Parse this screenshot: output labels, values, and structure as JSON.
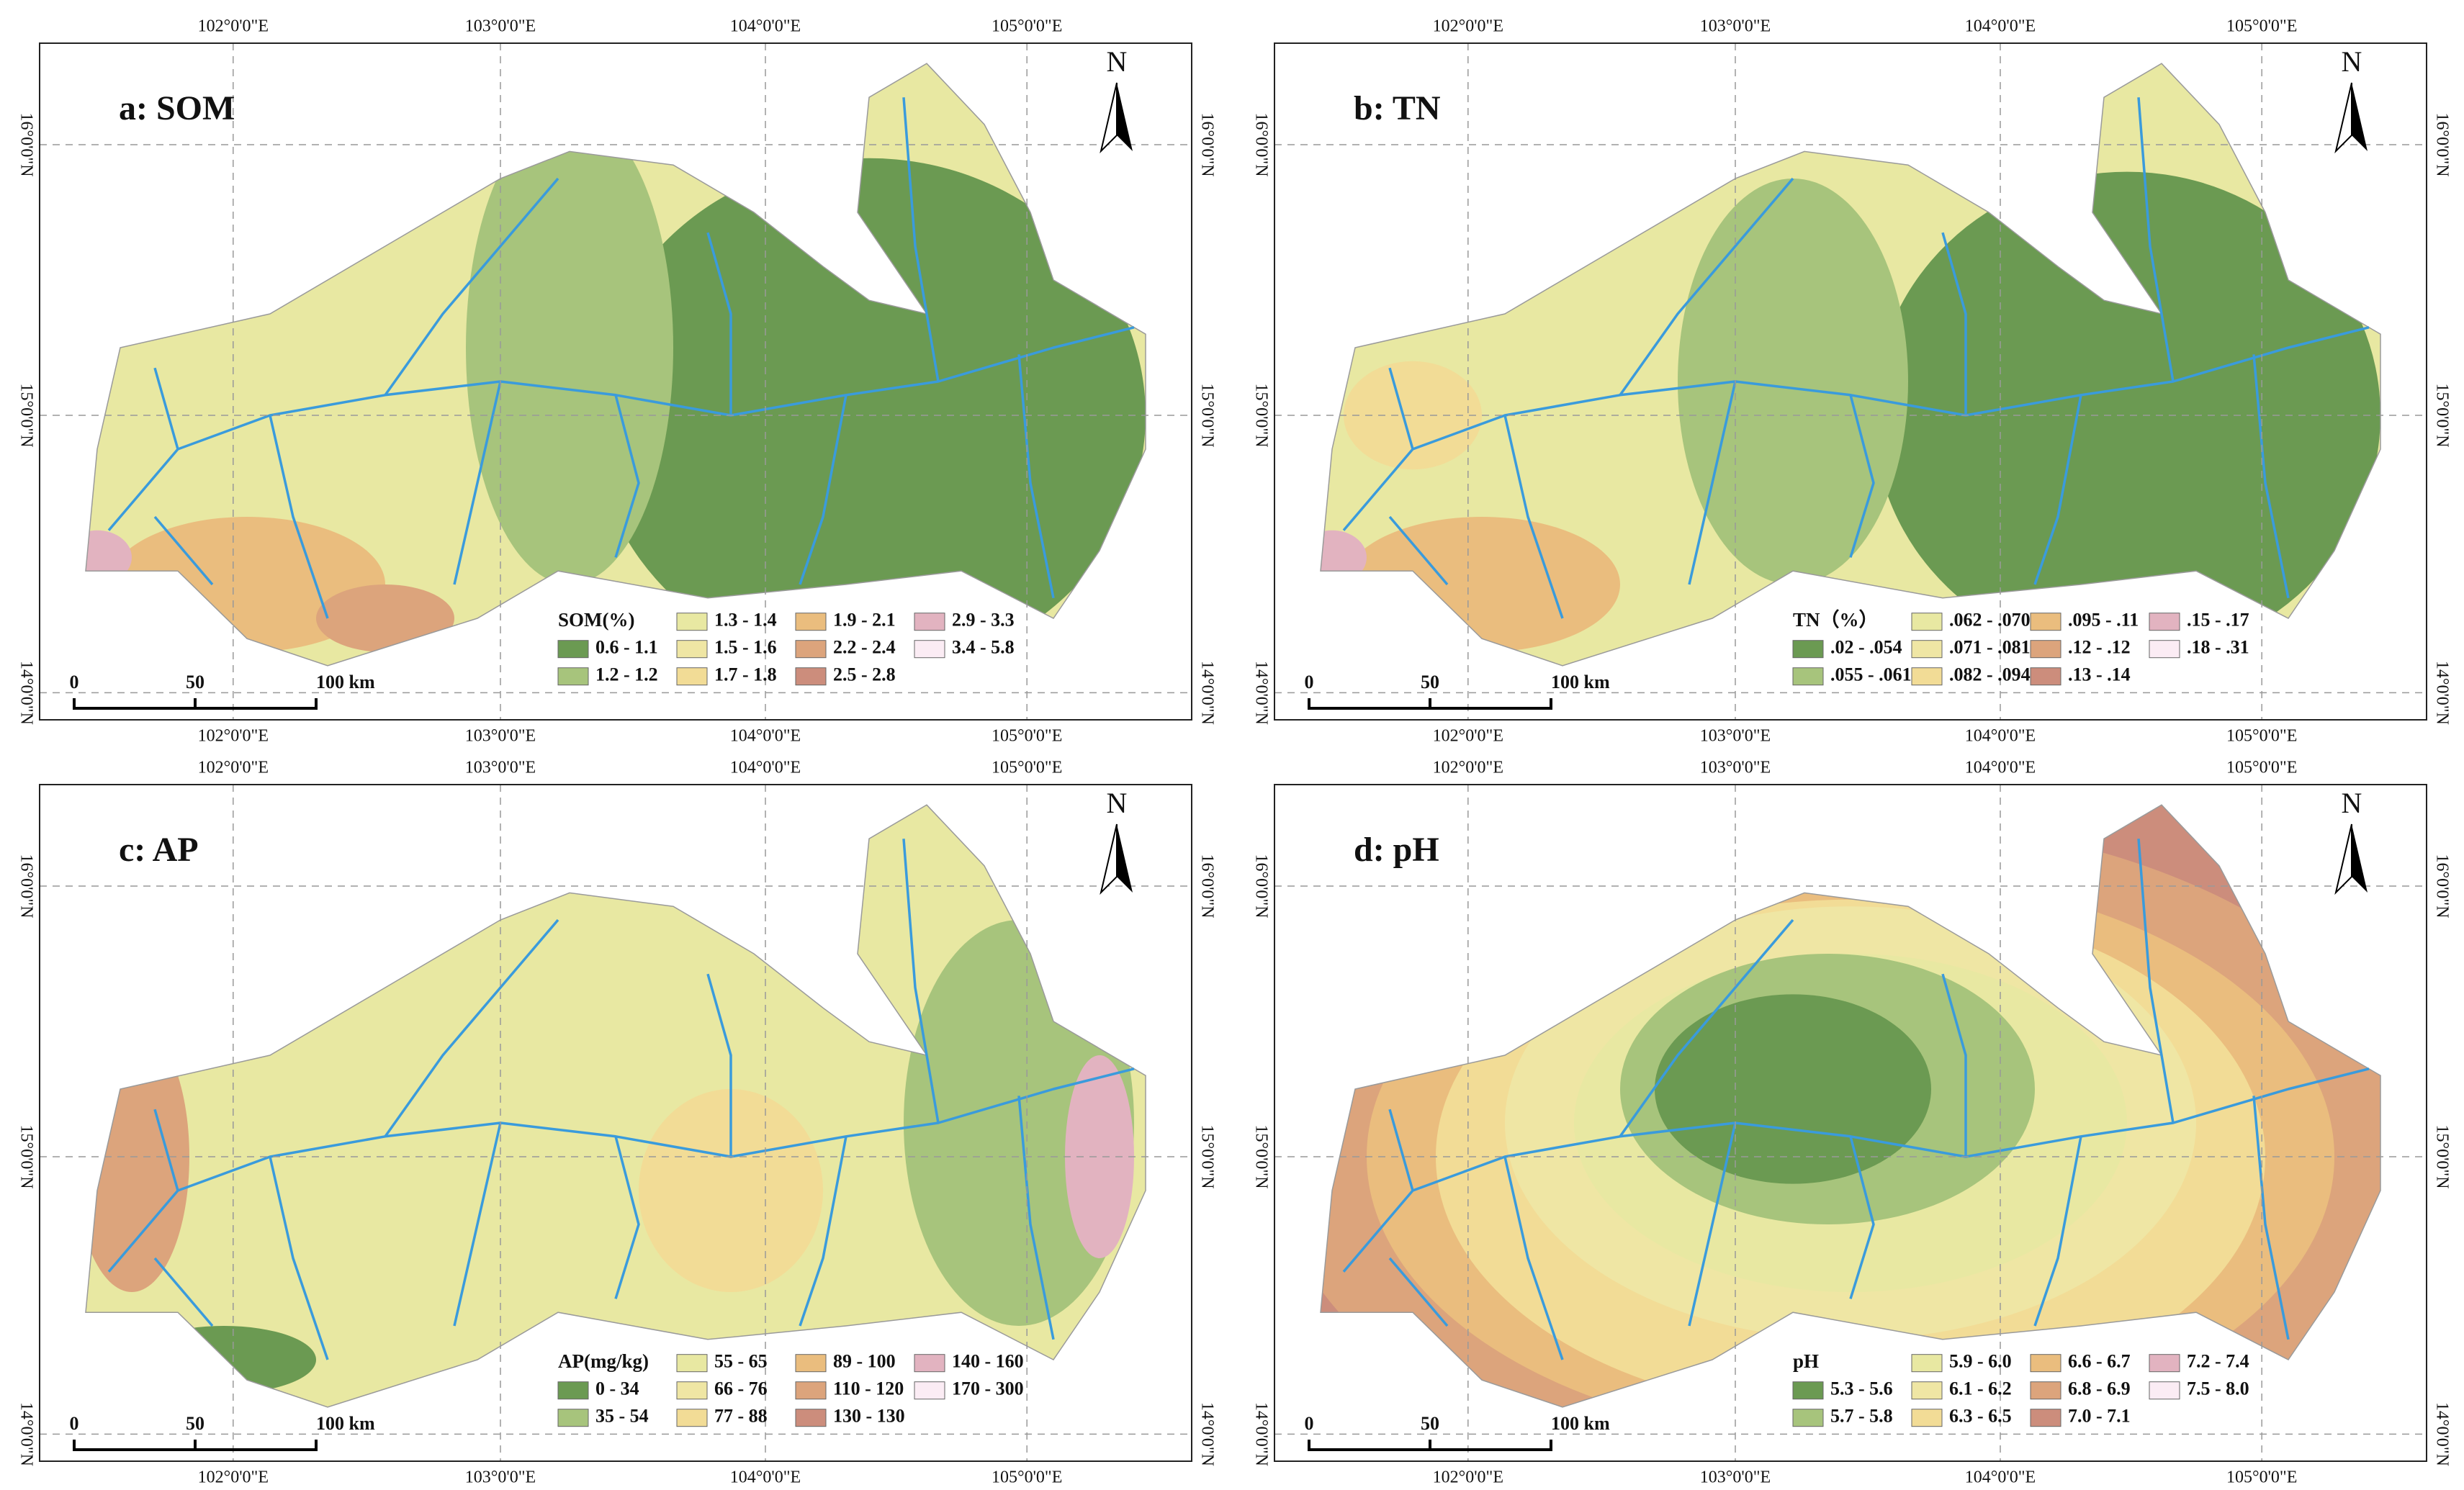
{
  "panels": [
    {
      "title": "a: SOM",
      "legend_title": "SOM(%)",
      "legend": [
        {
          "label": "0.6 - 1.1",
          "color": "#6b9a52"
        },
        {
          "label": "1.2 - 1.2",
          "color": "#a7c47c"
        },
        {
          "label": "1.3 - 1.4",
          "color": "#e8e8a2"
        },
        {
          "label": "1.5 - 1.6",
          "color": "#efe6a4"
        },
        {
          "label": "1.7 - 1.8",
          "color": "#f2dc96"
        },
        {
          "label": "1.9 - 2.1",
          "color": "#eabd7e"
        },
        {
          "label": "2.2 - 2.4",
          "color": "#dca47c"
        },
        {
          "label": "2.5 - 2.8",
          "color": "#cc8d7c"
        },
        {
          "label": "2.9 - 3.3",
          "color": "#e2b3c0"
        },
        {
          "label": "3.4 - 5.8",
          "color": "#fbecf4"
        }
      ]
    },
    {
      "title": "b: TN",
      "legend_title": "TN（%）",
      "legend": [
        {
          "label": ".02 - .054",
          "color": "#6b9a52"
        },
        {
          "label": ".055 - .061",
          "color": "#a7c47c"
        },
        {
          "label": ".062 - .070",
          "color": "#e8e8a2"
        },
        {
          "label": ".071 - .081",
          "color": "#efe6a4"
        },
        {
          "label": ".082 - .094",
          "color": "#f2dc96"
        },
        {
          "label": ".095 - .11",
          "color": "#eabd7e"
        },
        {
          "label": ".12 - .12",
          "color": "#dca47c"
        },
        {
          "label": ".13 - .14",
          "color": "#cc8d7c"
        },
        {
          "label": ".15 - .17",
          "color": "#e2b3c0"
        },
        {
          "label": ".18 - .31",
          "color": "#fbecf4"
        }
      ]
    },
    {
      "title": "c: AP",
      "legend_title": "AP(mg/kg)",
      "legend": [
        {
          "label": "0 - 34",
          "color": "#6b9a52"
        },
        {
          "label": "35 - 54",
          "color": "#a7c47c"
        },
        {
          "label": "55 - 65",
          "color": "#e8e8a2"
        },
        {
          "label": "66 - 76",
          "color": "#efe6a4"
        },
        {
          "label": "77 - 88",
          "color": "#f2dc96"
        },
        {
          "label": "89 - 100",
          "color": "#eabd7e"
        },
        {
          "label": "110 - 120",
          "color": "#dca47c"
        },
        {
          "label": "130 - 130",
          "color": "#cc8d7c"
        },
        {
          "label": "140 - 160",
          "color": "#e2b3c0"
        },
        {
          "label": "170 - 300",
          "color": "#fbecf4"
        }
      ]
    },
    {
      "title": "d: pH",
      "legend_title": "pH",
      "legend": [
        {
          "label": "5.3 - 5.6",
          "color": "#6b9a52"
        },
        {
          "label": "5.7 - 5.8",
          "color": "#a7c47c"
        },
        {
          "label": "5.9 - 6.0",
          "color": "#e8e8a2"
        },
        {
          "label": "6.1 - 6.2",
          "color": "#efe6a4"
        },
        {
          "label": "6.3 - 6.5",
          "color": "#f2dc96"
        },
        {
          "label": "6.6 - 6.7",
          "color": "#eabd7e"
        },
        {
          "label": "6.8 - 6.9",
          "color": "#dca47c"
        },
        {
          "label": "7.0 - 7.1",
          "color": "#cc8d7c"
        },
        {
          "label": "7.2 - 7.4",
          "color": "#e2b3c0"
        },
        {
          "label": "7.5 - 8.0",
          "color": "#fbecf4"
        }
      ]
    }
  ],
  "graticule": {
    "longitudes": [
      "102°0'0\"E",
      "103°0'0\"E",
      "104°0'0\"E",
      "105°0'0\"E"
    ],
    "latitudes": [
      "16°0'0\"N",
      "15°0'0\"N",
      "14°0'0\"N"
    ]
  },
  "north": "N",
  "scale_bar": [
    "0",
    "50",
    "100 km"
  ]
}
